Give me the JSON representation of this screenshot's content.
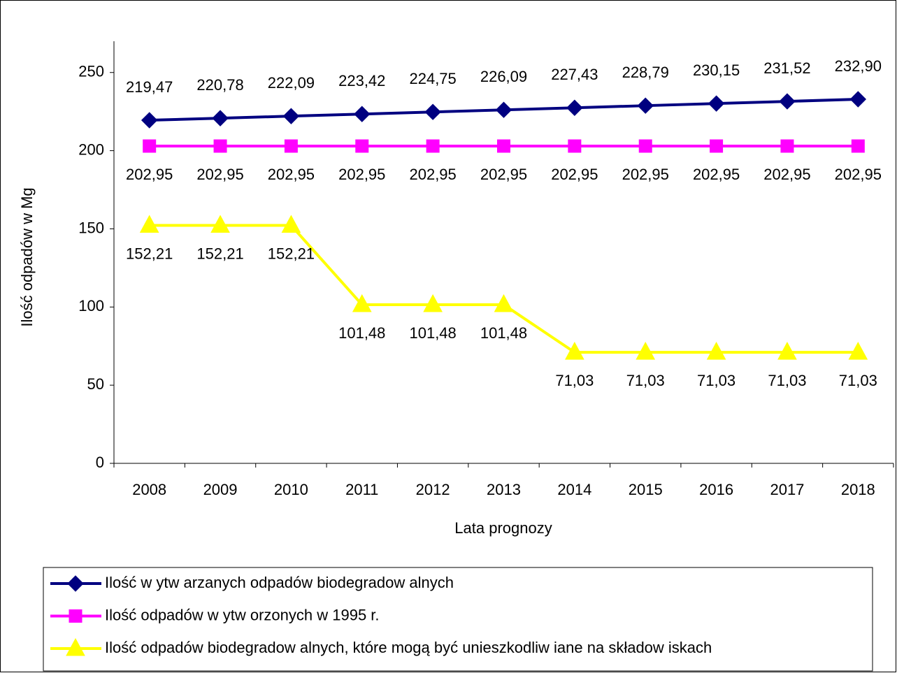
{
  "chart_data": {
    "type": "line",
    "x_label": "Lata prognozy",
    "y_label": "Ilość odpadów w Mg",
    "categories": [
      "2008",
      "2009",
      "2010",
      "2011",
      "2012",
      "2013",
      "2014",
      "2015",
      "2016",
      "2017",
      "2018"
    ],
    "series": [
      {
        "name": "Ilość w ytw arzanych odpadów  biodegradow alnych",
        "color": "#000080",
        "marker": "diamond",
        "label_position": "above",
        "values": [
          219.47,
          220.78,
          222.09,
          223.42,
          224.75,
          226.09,
          227.43,
          228.79,
          230.15,
          231.52,
          232.9
        ],
        "value_labels": [
          "219,47",
          "220,78",
          "222,09",
          "223,42",
          "224,75",
          "226,09",
          "227,43",
          "228,79",
          "230,15",
          "231,52",
          "232,90"
        ]
      },
      {
        "name": "Ilość odpadów  w ytw orzonych w  1995 r.",
        "color": "#ff00ff",
        "marker": "square",
        "label_position": "below",
        "values": [
          202.95,
          202.95,
          202.95,
          202.95,
          202.95,
          202.95,
          202.95,
          202.95,
          202.95,
          202.95,
          202.95
        ],
        "value_labels": [
          "202,95",
          "202,95",
          "202,95",
          "202,95",
          "202,95",
          "202,95",
          "202,95",
          "202,95",
          "202,95",
          "202,95",
          "202,95"
        ]
      },
      {
        "name": "Ilość odpadów  biodegradow alnych, które mogą być unieszkodliw iane na składow iskach",
        "color": "#ffff00",
        "marker": "triangle",
        "label_position": "below",
        "values": [
          152.21,
          152.21,
          152.21,
          101.48,
          101.48,
          101.48,
          71.03,
          71.03,
          71.03,
          71.03,
          71.03
        ],
        "value_labels": [
          "152,21",
          "152,21",
          "152,21",
          "101,48",
          "101,48",
          "101,48",
          "71,03",
          "71,03",
          "71,03",
          "71,03",
          "71,03"
        ]
      }
    ],
    "ylim": [
      0,
      270
    ],
    "yticks": [
      0,
      50,
      100,
      150,
      200,
      250
    ],
    "grid": false,
    "legend": "bottom"
  }
}
